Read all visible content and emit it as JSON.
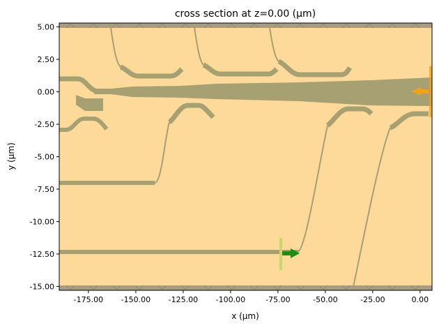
{
  "chart_data": {
    "type": "cross-section",
    "title": "cross section at z=0.00 (µm)",
    "xlabel": "x (µm)",
    "ylabel": "y (µm)",
    "xlim": [
      -190.4,
      6.3
    ],
    "ylim": [
      -15.3,
      5.3
    ],
    "xticks": [
      -175,
      -150,
      -125,
      -100,
      -75,
      -50,
      -25,
      0
    ],
    "xtick_labels": [
      "-175.00",
      "-150.00",
      "-125.00",
      "-100.00",
      "-75.00",
      "-50.00",
      "-25.00",
      "0.00"
    ],
    "yticks": [
      5,
      2.5,
      0,
      -2.5,
      -5,
      -7.5,
      -10,
      -12.5,
      -15
    ],
    "ytick_labels": [
      "5.00",
      "2.50",
      "0.00",
      "-2.50",
      "-5.00",
      "-7.50",
      "-10.00",
      "-12.50",
      "-15.00"
    ],
    "grid": false,
    "source": {
      "x": -75,
      "y": -12.5,
      "direction": "+x"
    },
    "monitor": {
      "x": 5,
      "y": 0,
      "direction": "-x"
    },
    "colors": {
      "background": "#fdda9a",
      "structure": "#a6a072",
      "pml": "#a89c84",
      "source": "#c8d66a",
      "source_arrow": "#1f8c12",
      "monitor": "#f0a31a"
    }
  }
}
